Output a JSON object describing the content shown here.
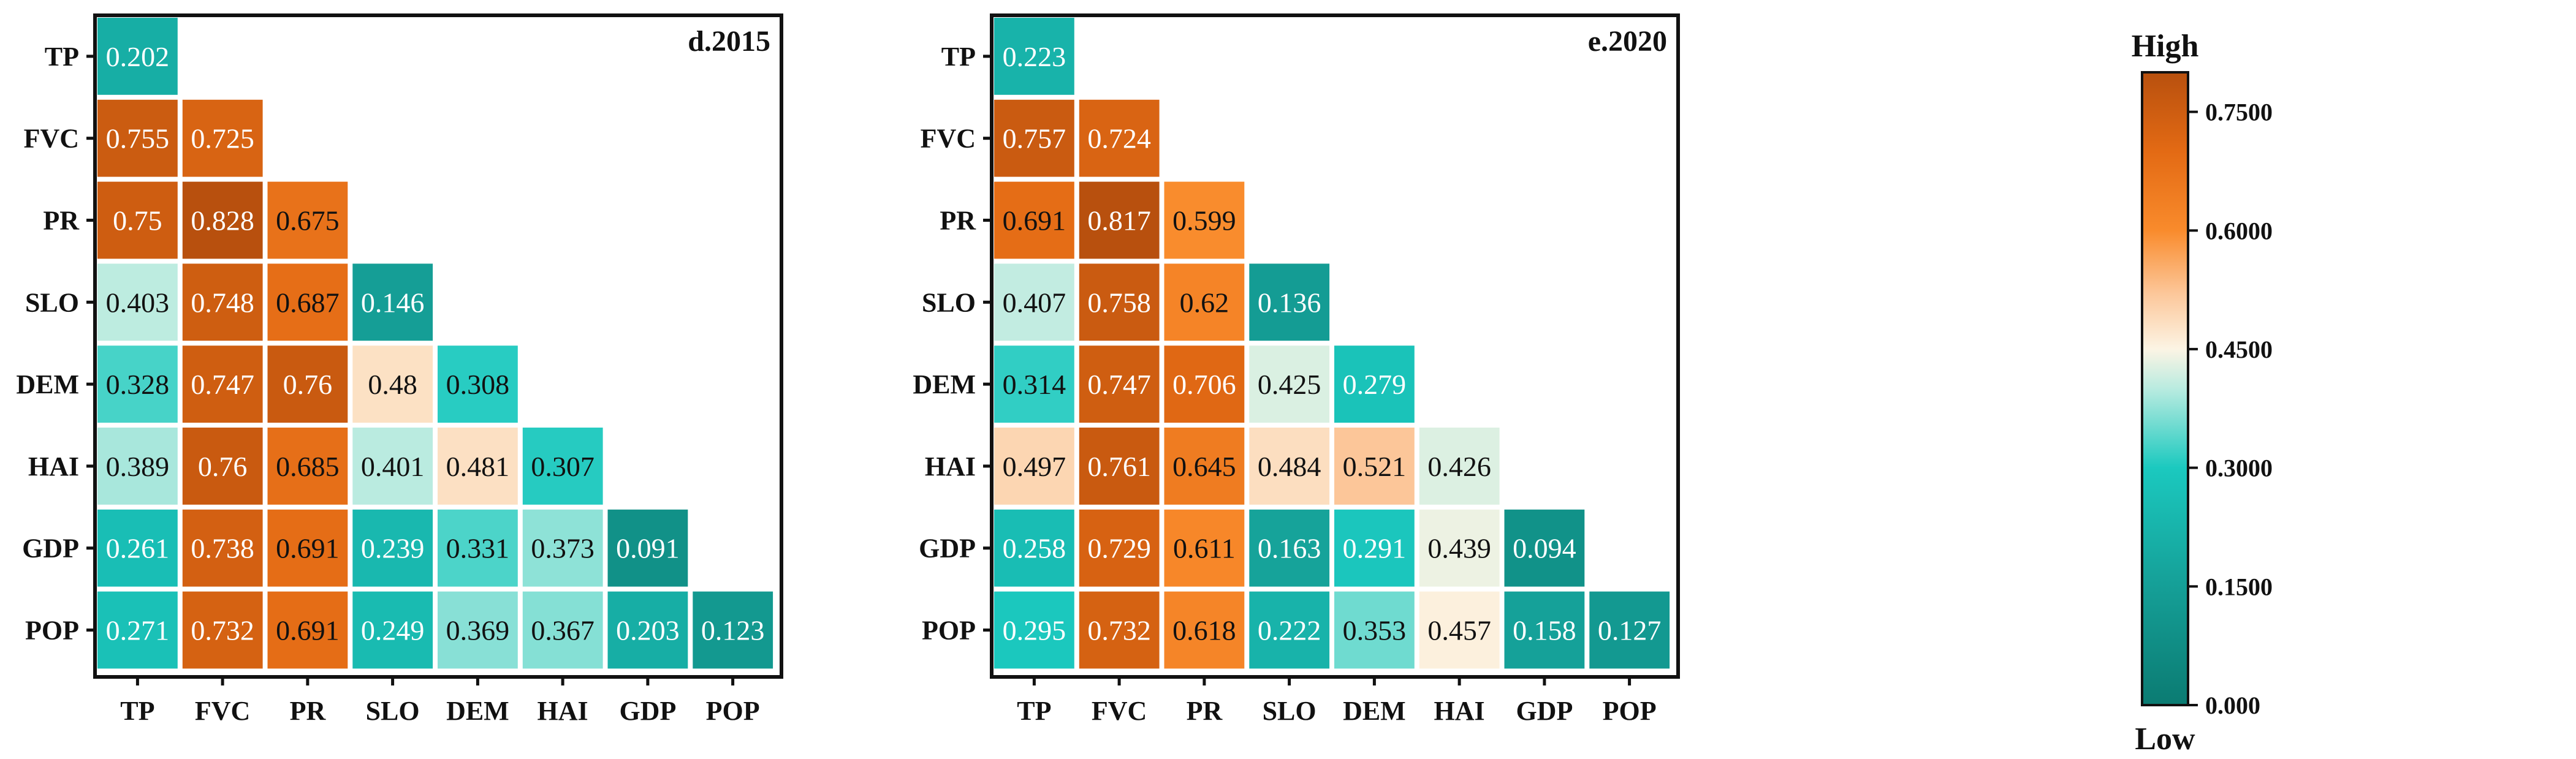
{
  "chart_data": [
    {
      "type": "heatmap",
      "title": "d.2015",
      "variables": [
        "TP",
        "FVC",
        "PR",
        "SLO",
        "DEM",
        "HAI",
        "GDP",
        "POP"
      ],
      "matrix": [
        [
          0.202
        ],
        [
          0.755,
          0.725
        ],
        [
          0.75,
          0.828,
          0.675
        ],
        [
          0.403,
          0.748,
          0.687,
          0.146
        ],
        [
          0.328,
          0.747,
          0.76,
          0.48,
          0.308
        ],
        [
          0.389,
          0.76,
          0.685,
          0.401,
          0.481,
          0.307
        ],
        [
          0.261,
          0.738,
          0.691,
          0.239,
          0.331,
          0.373,
          0.091
        ],
        [
          0.271,
          0.732,
          0.691,
          0.249,
          0.369,
          0.367,
          0.203,
          0.123
        ]
      ],
      "labels": [
        [
          "0.202"
        ],
        [
          "0.755",
          "0.725"
        ],
        [
          "0.75",
          "0.828",
          "0.675"
        ],
        [
          "0.403",
          "0.748",
          "0.687",
          "0.146"
        ],
        [
          "0.328",
          "0.747",
          "0.76",
          "0.48",
          "0.308"
        ],
        [
          "0.389",
          "0.76",
          "0.685",
          "0.401",
          "0.481",
          "0.307"
        ],
        [
          "0.261",
          "0.738",
          "0.691",
          "0.239",
          "0.331",
          "0.373",
          "0.091"
        ],
        [
          "0.271",
          "0.732",
          "0.691",
          "0.249",
          "0.369",
          "0.367",
          "0.203",
          "0.123"
        ]
      ]
    },
    {
      "type": "heatmap",
      "title": "e.2020",
      "variables": [
        "TP",
        "FVC",
        "PR",
        "SLO",
        "DEM",
        "HAI",
        "GDP",
        "POP"
      ],
      "matrix": [
        [
          0.223
        ],
        [
          0.757,
          0.724
        ],
        [
          0.691,
          0.817,
          0.599
        ],
        [
          0.407,
          0.758,
          0.62,
          0.136
        ],
        [
          0.314,
          0.747,
          0.706,
          0.425,
          0.279
        ],
        [
          0.497,
          0.761,
          0.645,
          0.484,
          0.521,
          0.426
        ],
        [
          0.258,
          0.729,
          0.611,
          0.163,
          0.291,
          0.439,
          0.094
        ],
        [
          0.295,
          0.732,
          0.618,
          0.222,
          0.353,
          0.457,
          0.158,
          0.127
        ]
      ],
      "labels": [
        [
          "0.223"
        ],
        [
          "0.757",
          "0.724"
        ],
        [
          "0.691",
          "0.817",
          "0.599"
        ],
        [
          "0.407",
          "0.758",
          "0.62",
          "0.136"
        ],
        [
          "0.314",
          "0.747",
          "0.706",
          "0.425",
          "0.279"
        ],
        [
          "0.497",
          "0.761",
          "0.645",
          "0.484",
          "0.521",
          "0.426"
        ],
        [
          "0.258",
          "0.729",
          "0.611",
          "0.163",
          "0.291",
          "0.439",
          "0.094"
        ],
        [
          "0.295",
          "0.732",
          "0.618",
          "0.222",
          "0.353",
          "0.457",
          "0.158",
          "0.127"
        ]
      ]
    }
  ],
  "colorbar": {
    "label_high": "High",
    "label_low": "Low",
    "range": [
      0.0,
      0.8
    ],
    "ticks": [
      0.0,
      0.15,
      0.3,
      0.45,
      0.6,
      0.75
    ],
    "tick_labels": [
      "0.000",
      "0.1500",
      "0.3000",
      "0.4500",
      "0.6000",
      "0.7500"
    ],
    "stops": [
      {
        "value": 0.0,
        "color": "#0b7b72"
      },
      {
        "value": 0.15,
        "color": "#159f97"
      },
      {
        "value": 0.3,
        "color": "#1bc9bf"
      },
      {
        "value": 0.4,
        "color": "#b9ebe0"
      },
      {
        "value": 0.45,
        "color": "#fcf4e4"
      },
      {
        "value": 0.52,
        "color": "#fcc79a"
      },
      {
        "value": 0.6,
        "color": "#f98b2c"
      },
      {
        "value": 0.7,
        "color": "#e36a14"
      },
      {
        "value": 0.8,
        "color": "#b8500e"
      }
    ]
  }
}
